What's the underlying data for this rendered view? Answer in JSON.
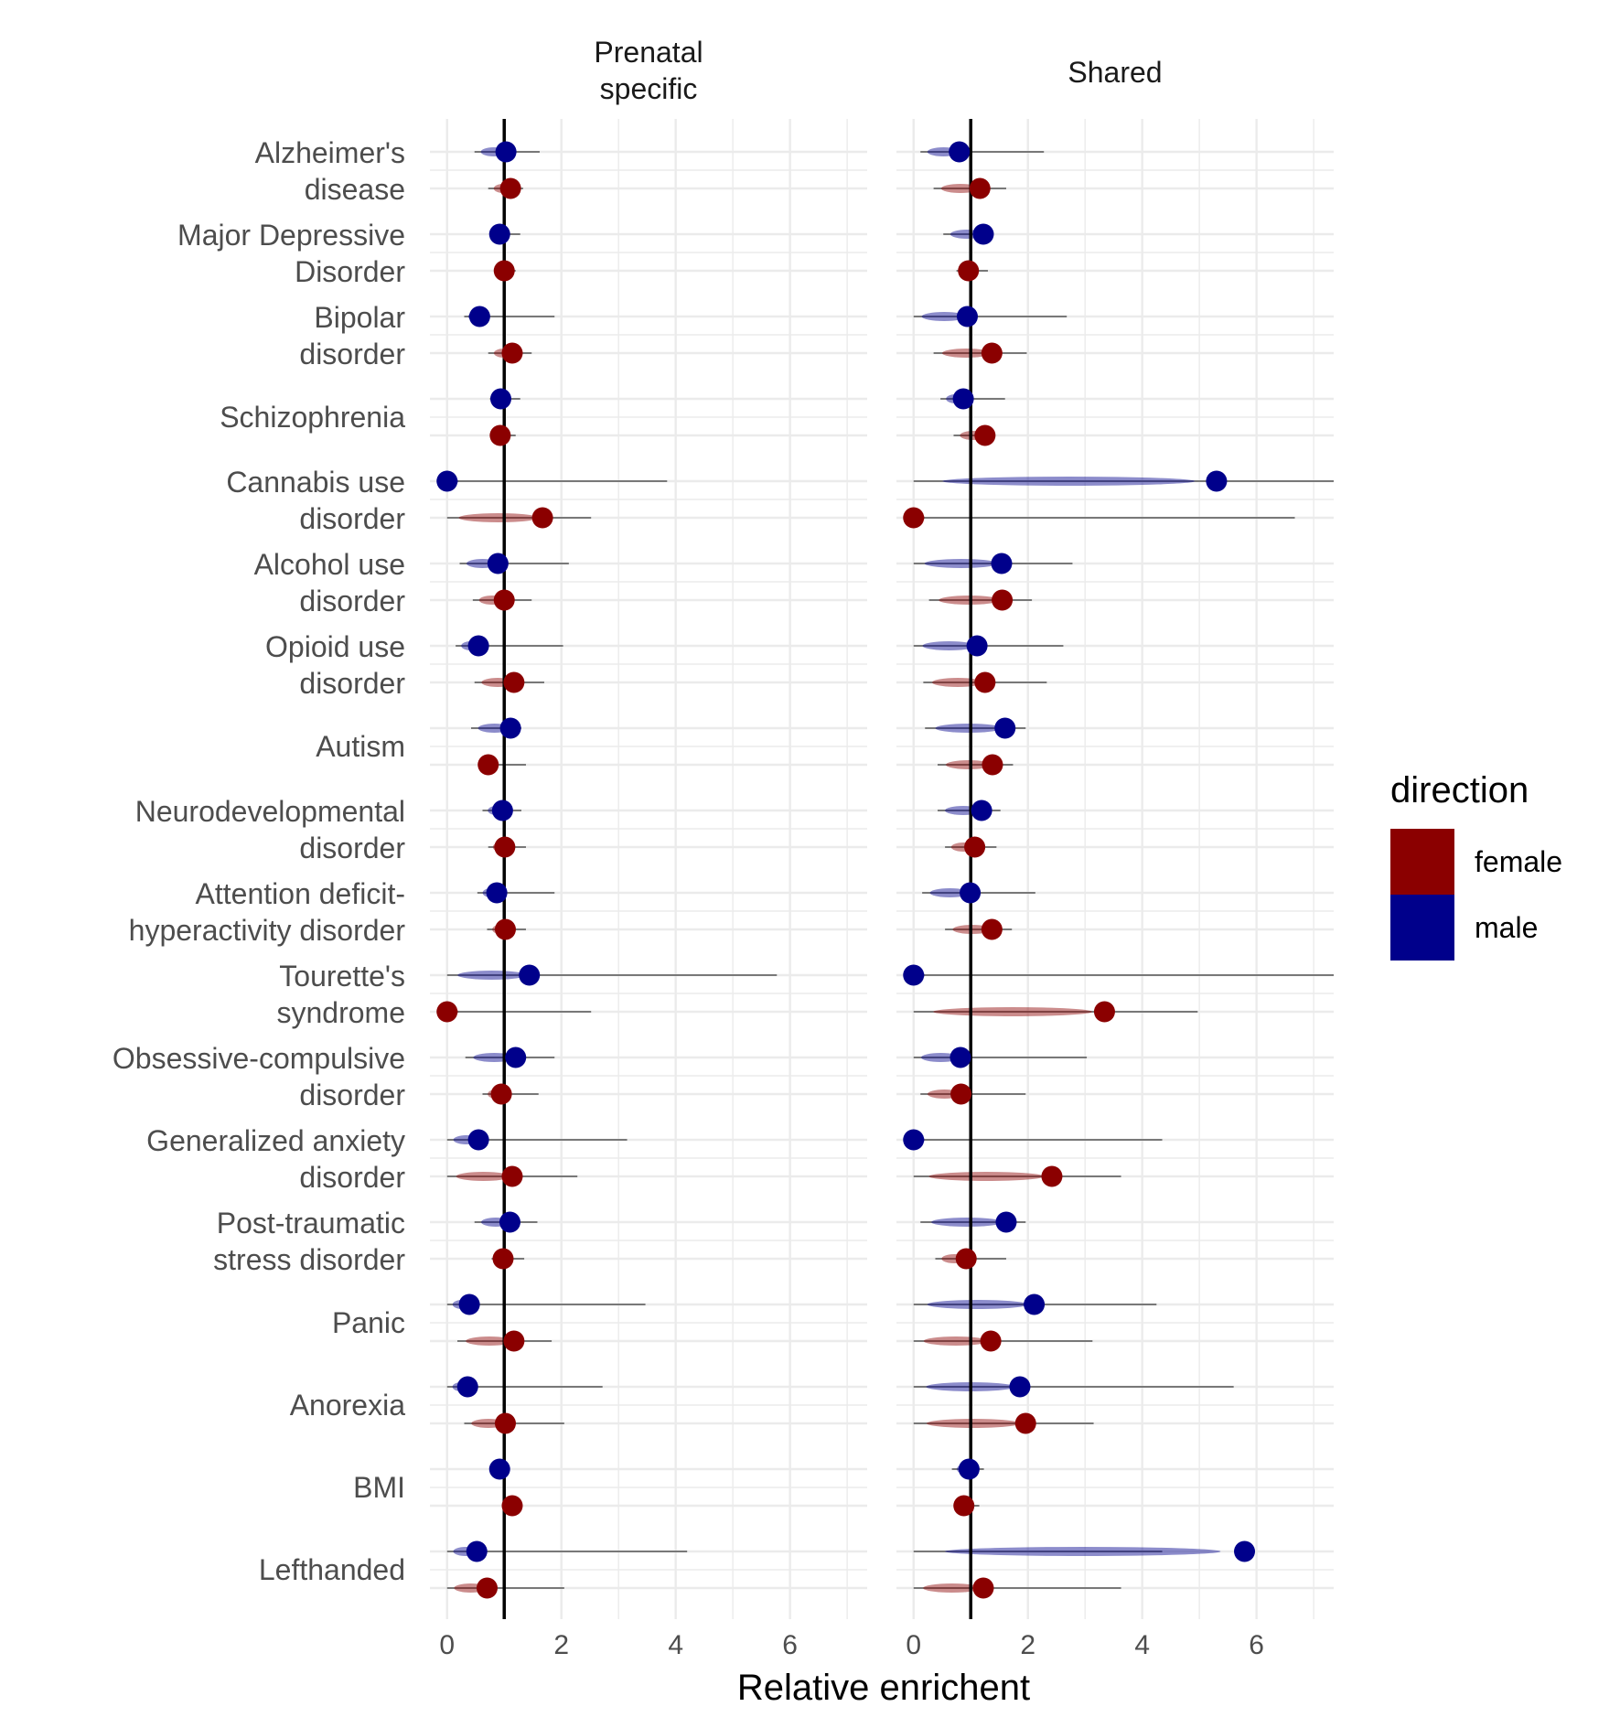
{
  "chart_data": {
    "type": "scatter",
    "xlabel": "Relative enrichent",
    "xlim": [
      -0.3,
      7.35
    ],
    "xticks": [
      0,
      2,
      4,
      6
    ],
    "facets": [
      "Prenatal\nspecific",
      "Shared"
    ],
    "reference_line_x": 1,
    "legend": {
      "title": "direction",
      "position": "right",
      "entries": [
        {
          "name": "female",
          "color": "#8b0000"
        },
        {
          "name": "male",
          "color": "#00008b"
        }
      ]
    },
    "categories": [
      "Alzheimer's\ndisease",
      "Major Depressive\nDisorder",
      "Bipolar\ndisorder",
      "Schizophrenia",
      "Cannabis use\ndisorder",
      "Alcohol use\ndisorder",
      "Opioid use\ndisorder",
      "Autism",
      "Neurodevelopmental\ndisorder",
      "Attention deficit-\nhyperactivity disorder",
      "Tourette's\nsyndrome",
      "Obsessive-compulsive\ndisorder",
      "Generalized anxiety\ndisorder",
      "Post-traumatic\nstress disorder",
      "Panic",
      "Anorexia",
      "BMI",
      "Lefthanded"
    ],
    "series": [
      {
        "name": "male",
        "facet": "Prenatal\nspecific",
        "values": [
          1.03,
          0.92,
          0.57,
          0.94,
          0.0,
          0.89,
          0.55,
          1.11,
          0.97,
          0.87,
          1.44,
          1.2,
          0.55,
          1.1,
          0.39,
          0.36,
          0.92,
          0.52
        ],
        "range_min": [
          0.48,
          0.85,
          0.3,
          0.75,
          0.0,
          0.22,
          0.15,
          0.42,
          0.62,
          0.53,
          0.0,
          0.32,
          0.0,
          0.48,
          0.0,
          0.0,
          0.88,
          0.0
        ],
        "range_max": [
          1.62,
          1.28,
          1.88,
          1.28,
          3.85,
          2.13,
          2.03,
          1.3,
          1.3,
          1.88,
          5.77,
          1.88,
          3.15,
          1.58,
          3.47,
          2.72,
          1.08,
          4.2
        ]
      },
      {
        "name": "female",
        "facet": "Prenatal\nspecific",
        "values": [
          1.11,
          1.0,
          1.14,
          0.93,
          1.67,
          1.0,
          1.17,
          0.72,
          1.01,
          1.02,
          0.0,
          0.95,
          1.14,
          0.98,
          1.17,
          1.02,
          1.14,
          0.7
        ],
        "range_min": [
          0.72,
          0.92,
          0.72,
          0.8,
          0.0,
          0.45,
          0.48,
          0.55,
          0.72,
          0.7,
          0.0,
          0.62,
          0.0,
          0.78,
          0.18,
          0.3,
          1.02,
          0.0
        ],
        "range_max": [
          1.33,
          1.2,
          1.48,
          1.2,
          2.52,
          1.48,
          1.7,
          1.38,
          1.38,
          1.38,
          2.52,
          1.6,
          2.28,
          1.35,
          1.83,
          2.05,
          1.2,
          2.05
        ]
      },
      {
        "name": "male",
        "facet": "Shared",
        "values": [
          0.8,
          1.22,
          0.94,
          0.87,
          5.3,
          1.54,
          1.11,
          1.6,
          1.19,
          0.99,
          0.0,
          0.82,
          0.0,
          1.62,
          2.11,
          1.86,
          0.97,
          5.79
        ],
        "range_min": [
          0.12,
          0.52,
          0.0,
          0.47,
          0.0,
          0.0,
          0.0,
          0.2,
          0.42,
          0.15,
          0.0,
          0.0,
          0.0,
          0.12,
          0.0,
          0.0,
          0.67,
          0.0
        ],
        "range_max": [
          2.28,
          1.4,
          2.68,
          1.6,
          7.35,
          2.78,
          2.62,
          1.96,
          1.52,
          2.13,
          7.35,
          3.03,
          4.35,
          1.96,
          4.25,
          5.6,
          1.23,
          4.35
        ]
      },
      {
        "name": "female",
        "facet": "Shared",
        "values": [
          1.16,
          0.96,
          1.37,
          1.25,
          0.0,
          1.55,
          1.25,
          1.38,
          1.07,
          1.37,
          3.34,
          0.83,
          2.42,
          0.92,
          1.35,
          1.96,
          0.88,
          1.22
        ],
        "range_min": [
          0.35,
          0.75,
          0.35,
          0.7,
          0.0,
          0.27,
          0.17,
          0.42,
          0.55,
          0.55,
          0.0,
          0.12,
          0.0,
          0.38,
          0.0,
          0.0,
          0.85,
          0.0
        ],
        "range_max": [
          1.62,
          1.3,
          1.98,
          1.38,
          6.67,
          2.07,
          2.33,
          1.74,
          1.45,
          1.72,
          4.97,
          1.96,
          3.63,
          1.62,
          3.13,
          3.15,
          1.15,
          3.63
        ]
      }
    ]
  }
}
